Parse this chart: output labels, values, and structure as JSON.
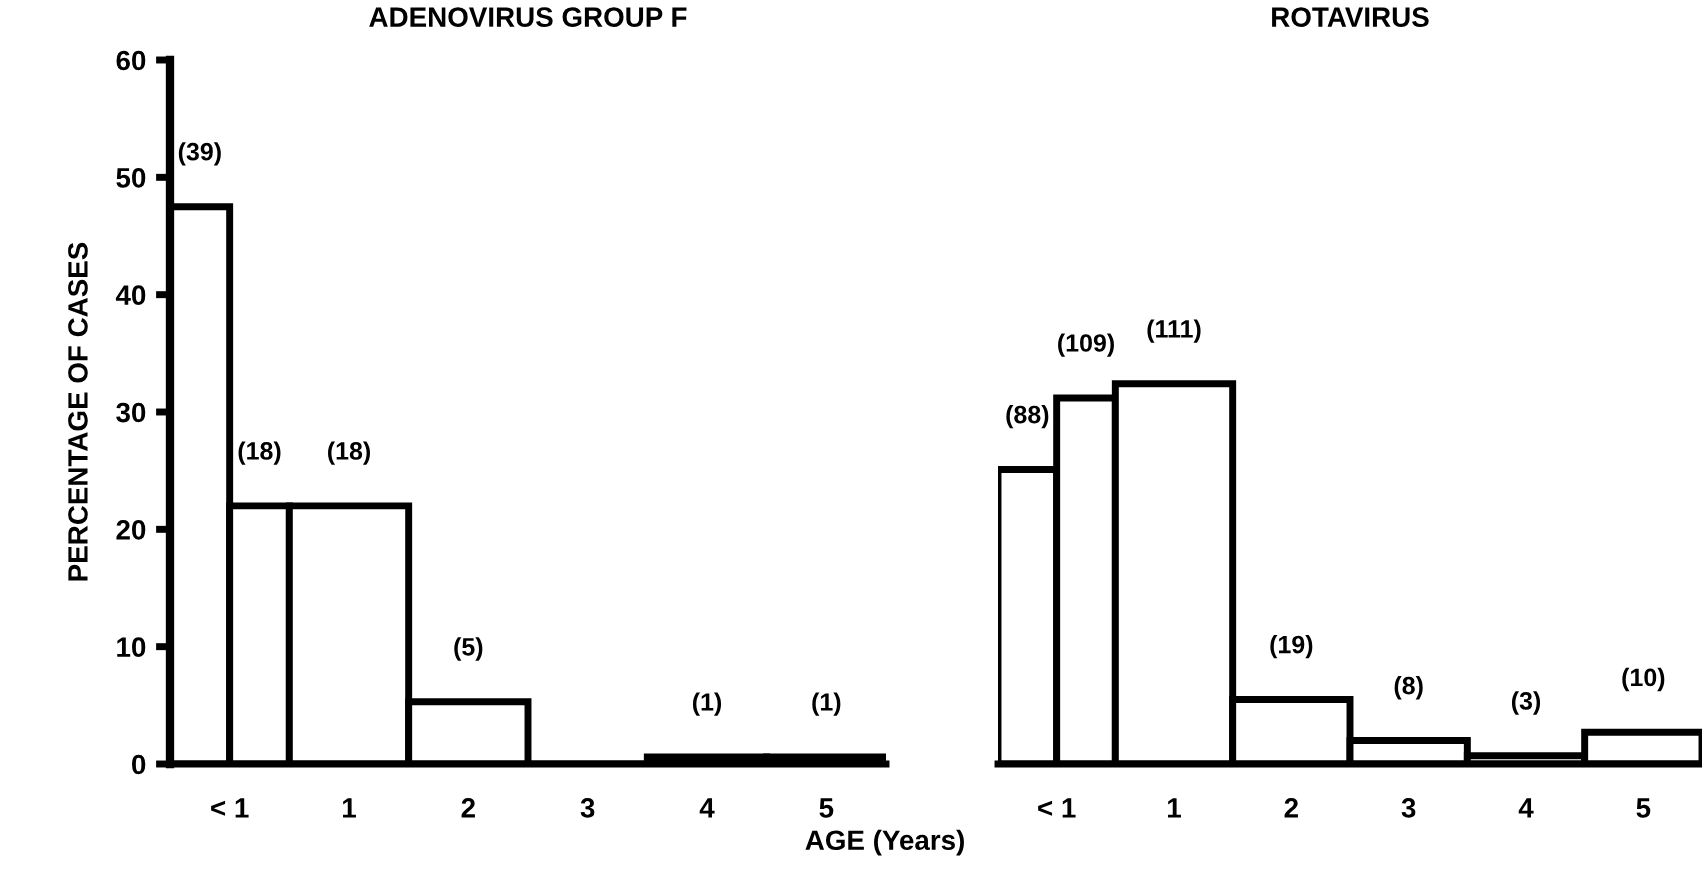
{
  "chart_data": [
    {
      "type": "histogram",
      "title": "ADENOVIRUS GROUP F",
      "ylabel": "PERCENTAGE OF CASES",
      "xlabel": "AGE (Years)",
      "color": "#ffffff",
      "bins": [
        0,
        0.5,
        1,
        2,
        3,
        4,
        5,
        6
      ],
      "values": [
        47.5,
        22,
        22,
        5.3,
        0,
        0.6,
        0.6
      ],
      "annotations": [
        {
          "text": "(39)",
          "x": 0.25,
          "y": 47.5
        },
        {
          "text": "(18)",
          "x": 0.75,
          "y": 22
        },
        {
          "text": "(18)",
          "x": 1.5,
          "y": 22
        },
        {
          "text": "(5)",
          "x": 2.5,
          "y": 5.3
        },
        {
          "text": "(1)",
          "x": 4.5,
          "y": 0.6
        },
        {
          "text": "(1)",
          "x": 5.5,
          "y": 0.6
        }
      ],
      "xlim": [
        0,
        6
      ],
      "xticks": [
        {
          "value": 0.5,
          "label": "< 1"
        },
        {
          "value": 1.5,
          "label": "1"
        },
        {
          "value": 2.5,
          "label": "2"
        },
        {
          "value": 3.5,
          "label": "3"
        },
        {
          "value": 4.5,
          "label": "4"
        },
        {
          "value": 5.5,
          "label": "5"
        }
      ],
      "ylim": [
        0,
        60
      ],
      "yticks": [
        0,
        10,
        20,
        30,
        40,
        50,
        60
      ],
      "grid": false,
      "legend": false
    },
    {
      "type": "histogram",
      "title": "ROTAVIRUS",
      "color": "#ffffff",
      "bins": [
        0,
        0.5,
        1,
        2,
        3,
        4,
        5,
        6
      ],
      "values": [
        25.1,
        31.2,
        32.4,
        5.5,
        2.0,
        0.7,
        2.7
      ],
      "annotations": [
        {
          "text": "(88)",
          "x": 0.25,
          "y": 25.1
        },
        {
          "text": "(109)",
          "x": 0.75,
          "y": 31.2
        },
        {
          "text": "(111)",
          "x": 1.5,
          "y": 32.4
        },
        {
          "text": "(19)",
          "x": 2.5,
          "y": 5.5
        },
        {
          "text": "(8)",
          "x": 3.5,
          "y": 2.0
        },
        {
          "text": "(3)",
          "x": 4.5,
          "y": 0.7
        },
        {
          "text": "(10)",
          "x": 5.5,
          "y": 2.7
        }
      ],
      "xlim": [
        0,
        6
      ],
      "xticks": [
        {
          "value": 0.5,
          "label": "< 1"
        },
        {
          "value": 1.5,
          "label": "1"
        },
        {
          "value": 2.5,
          "label": "2"
        },
        {
          "value": 3.5,
          "label": "3"
        },
        {
          "value": 4.5,
          "label": "4"
        },
        {
          "value": 5.5,
          "label": "5"
        }
      ],
      "ylim": [
        0,
        60
      ],
      "tick_labels": "x",
      "grid": false,
      "legend": false
    }
  ]
}
